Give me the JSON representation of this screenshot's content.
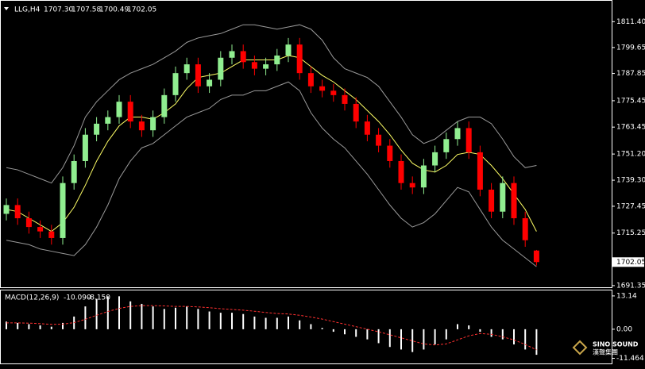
{
  "chart_data": {
    "type": "candlestick",
    "title": "LLG,H4",
    "info": [
      {
        "value": 1707.3,
        "label": "1707.30"
      },
      {
        "value": 1707.58,
        "label": "1707.58"
      },
      {
        "value": 1700.49,
        "label": "1700.49"
      },
      {
        "value": 1702.05,
        "label": "1702.05"
      }
    ],
    "open": [
      1724,
      1728,
      1722,
      1718,
      1716,
      1713,
      1738,
      1748,
      1760,
      1765,
      1768,
      1775,
      1766,
      1762,
      1768,
      1778,
      1788,
      1792,
      1782,
      1785,
      1795,
      1798,
      1793,
      1790,
      1792,
      1796,
      1801,
      1788,
      1782,
      1780,
      1778,
      1774,
      1766,
      1760,
      1755,
      1748,
      1738,
      1736,
      1746,
      1752,
      1758,
      1763,
      1752,
      1735,
      1725,
      1738,
      1722,
      1707.3
    ],
    "high": [
      1731,
      1731,
      1725,
      1721,
      1719,
      1741,
      1751,
      1763,
      1768,
      1771,
      1778,
      1778,
      1769,
      1771,
      1781,
      1791,
      1795,
      1795,
      1788,
      1798,
      1801,
      1801,
      1796,
      1795,
      1799,
      1804,
      1804,
      1791,
      1785,
      1783,
      1781,
      1777,
      1769,
      1763,
      1758,
      1751,
      1741,
      1749,
      1755,
      1761,
      1766,
      1766,
      1755,
      1738,
      1741,
      1741,
      1725,
      1707.58
    ],
    "low": [
      1721,
      1719,
      1715,
      1713,
      1710,
      1710,
      1735,
      1745,
      1757,
      1762,
      1765,
      1763,
      1759,
      1759,
      1765,
      1775,
      1785,
      1779,
      1779,
      1782,
      1792,
      1790,
      1787,
      1787,
      1789,
      1793,
      1785,
      1779,
      1777,
      1775,
      1771,
      1763,
      1757,
      1752,
      1745,
      1735,
      1733,
      1733,
      1743,
      1749,
      1755,
      1749,
      1732,
      1722,
      1722,
      1719,
      1709,
      1700.49
    ],
    "close": [
      1728,
      1722,
      1718,
      1716,
      1713,
      1738,
      1748,
      1760,
      1765,
      1768,
      1775,
      1766,
      1762,
      1768,
      1778,
      1788,
      1792,
      1782,
      1785,
      1795,
      1798,
      1793,
      1790,
      1792,
      1796,
      1801,
      1788,
      1782,
      1780,
      1778,
      1774,
      1766,
      1760,
      1755,
      1748,
      1738,
      1736,
      1746,
      1752,
      1758,
      1763,
      1752,
      1735,
      1725,
      1738,
      1722,
      1712,
      1702.05
    ],
    "up_color": "#90ee90",
    "down_color": "#ff0000",
    "bands": {
      "color": "#9a9a9a",
      "upper": [
        1745,
        1744,
        1742,
        1740,
        1738,
        1745,
        1755,
        1768,
        1775,
        1780,
        1785,
        1788,
        1790,
        1792,
        1795,
        1798,
        1802,
        1804,
        1805,
        1806,
        1808,
        1810,
        1810,
        1809,
        1808,
        1809,
        1810,
        1808,
        1803,
        1795,
        1790,
        1788,
        1786,
        1782,
        1775,
        1768,
        1760,
        1756,
        1758,
        1762,
        1766,
        1768,
        1768,
        1765,
        1758,
        1750,
        1745,
        1746
      ],
      "lower": [
        1712,
        1711,
        1710,
        1708,
        1707,
        1706,
        1705,
        1710,
        1718,
        1728,
        1740,
        1748,
        1754,
        1756,
        1760,
        1764,
        1768,
        1770,
        1772,
        1776,
        1778,
        1778,
        1780,
        1780,
        1782,
        1784,
        1780,
        1770,
        1763,
        1758,
        1754,
        1748,
        1742,
        1735,
        1728,
        1722,
        1718,
        1720,
        1724,
        1730,
        1736,
        1734,
        1726,
        1718,
        1712,
        1708,
        1704,
        1700
      ]
    },
    "ma": {
      "color": "#ffff66",
      "values": [
        1726,
        1725,
        1722,
        1719,
        1716,
        1720,
        1727,
        1737,
        1748,
        1757,
        1764,
        1768,
        1768,
        1767,
        1770,
        1774,
        1781,
        1786,
        1787,
        1788,
        1791,
        1794,
        1794,
        1794,
        1794,
        1796,
        1795,
        1791,
        1787,
        1784,
        1780,
        1776,
        1771,
        1766,
        1760,
        1753,
        1747,
        1744,
        1743,
        1746,
        1751,
        1752,
        1751,
        1746,
        1740,
        1733,
        1726,
        1716
      ]
    },
    "ylim": [
      1690.6,
      1820.9
    ],
    "yticks": [
      {
        "value": 1811.4,
        "label": "1811.40"
      },
      {
        "value": 1799.65,
        "label": "1799.65"
      },
      {
        "value": 1787.85,
        "label": "1787.85"
      },
      {
        "value": 1775.45,
        "label": "1775.45"
      },
      {
        "value": 1763.45,
        "label": "1763.45"
      },
      {
        "value": 1751.2,
        "label": "1751.20"
      },
      {
        "value": 1739.3,
        "label": "1739.30"
      },
      {
        "value": 1727.45,
        "label": "1727.45"
      },
      {
        "value": 1715.25,
        "label": "1715.25"
      },
      {
        "value": 1691.35,
        "label": "1691.35"
      }
    ],
    "current_price": {
      "value": 1702.05,
      "label": "1702.05"
    },
    "macd": {
      "title": "MACD(12,26,9)",
      "info": [
        {
          "value": -10.09,
          "label": "-10.090"
        },
        {
          "value": -8.15,
          "label": "-8.150"
        }
      ],
      "hist_color": "#ffffff",
      "signal_color": "#ff3030",
      "histogram": [
        3,
        2.5,
        2,
        1.5,
        1,
        2.5,
        5,
        9,
        12,
        13,
        13,
        11,
        10,
        9,
        8,
        8.5,
        9,
        8,
        7,
        6.5,
        6.5,
        6,
        5,
        4.5,
        4.5,
        5,
        3.5,
        2,
        0.5,
        -1,
        -2,
        -3,
        -4,
        -5.5,
        -7,
        -8,
        -9,
        -8,
        -6,
        -4,
        2,
        1.5,
        -1,
        -3,
        -4,
        -6,
        -8,
        -10.09
      ],
      "signal": [
        2.5,
        2.5,
        2.4,
        2.2,
        1.9,
        2,
        2.6,
        3.9,
        5.5,
        7,
        8.2,
        9,
        9.3,
        9.3,
        9.2,
        9,
        9,
        8.8,
        8.5,
        8.1,
        7.8,
        7.5,
        7.1,
        6.6,
        6.2,
        6,
        5.5,
        4.8,
        4,
        3,
        2,
        1,
        0,
        -1,
        -2.2,
        -3.4,
        -4.6,
        -5.8,
        -6.2,
        -5.8,
        -4.2,
        -2.6,
        -1.7,
        -2,
        -3,
        -4.2,
        -6,
        -8.15
      ],
      "ylim": [
        -13.5,
        15.3
      ],
      "yticks": [
        13.14,
        {
          "value": 0,
          "label": "0.00"
        },
        -11.464
      ]
    },
    "watermark": "SINO SOUND",
    "watermark_sub": "漢聲集團"
  }
}
